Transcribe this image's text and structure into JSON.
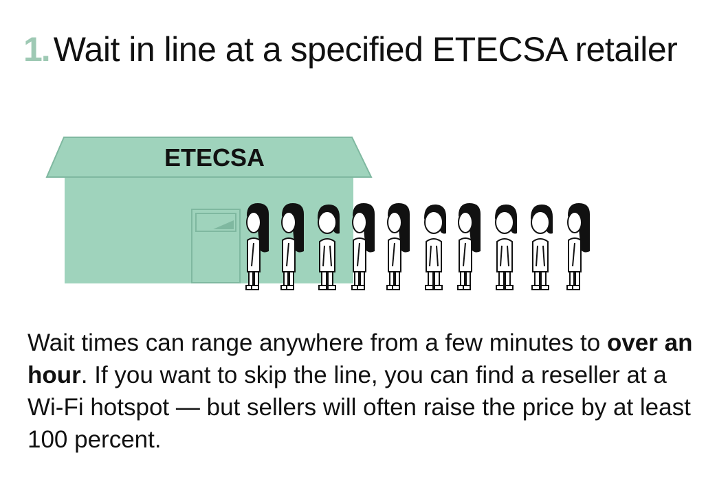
{
  "step": {
    "number": "1.",
    "title": "Wait in line at a specified ETECSA retailer"
  },
  "illustration": {
    "store_sign": "ETECSA",
    "store_color": "#9fd3bc",
    "store_outline": "#7fb8a0",
    "person_count": 10
  },
  "description": {
    "lead": "Wait times can range anywhere from a few minutes to",
    "emphasis": "over an hour",
    "rest": ". If you want to skip the line, you can find a reseller at a Wi-Fi hotspot — but sellers will often raise the price by at least 100 percent."
  },
  "colors": {
    "accent": "#9ec9b4",
    "text": "#111111"
  }
}
